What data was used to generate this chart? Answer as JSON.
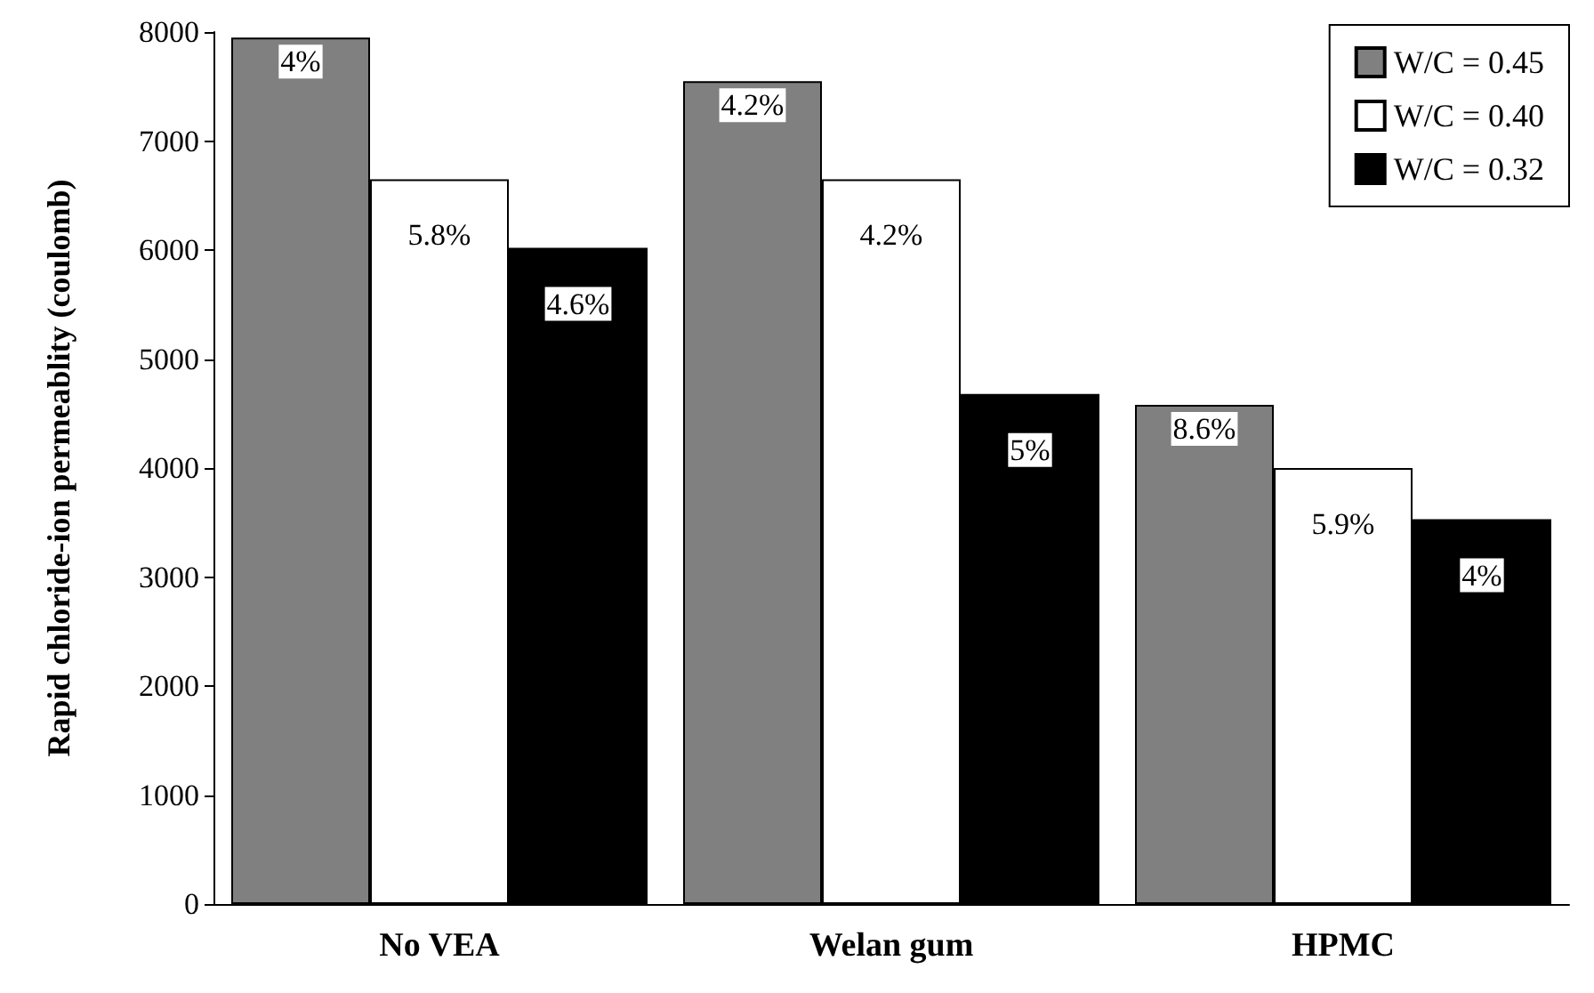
{
  "chart_data": {
    "type": "bar",
    "ylabel": "Rapid chloride-ion permeablity (coulomb)",
    "categories": [
      "No VEA",
      "Welan gum",
      "HPMC"
    ],
    "series": [
      {
        "name": "W/C = 0.45",
        "color": "#808080",
        "values": [
          7950,
          7550,
          4580
        ]
      },
      {
        "name": "W/C = 0.40",
        "color": "#ffffff",
        "values": [
          6650,
          6650,
          4000
        ]
      },
      {
        "name": "W/C = 0.32",
        "color": "#000000",
        "values": [
          6020,
          4680,
          3530
        ]
      }
    ],
    "ylim": [
      0,
      8000
    ],
    "yticks": [
      0,
      1000,
      2000,
      3000,
      4000,
      5000,
      6000,
      7000,
      8000
    ],
    "grid": false,
    "legend": "top right",
    "annotations": [
      "4%",
      "4.2%",
      "8.6%",
      "5.8%",
      "4.2%",
      "5.9%",
      "4.6%",
      "5%",
      "4%"
    ]
  }
}
